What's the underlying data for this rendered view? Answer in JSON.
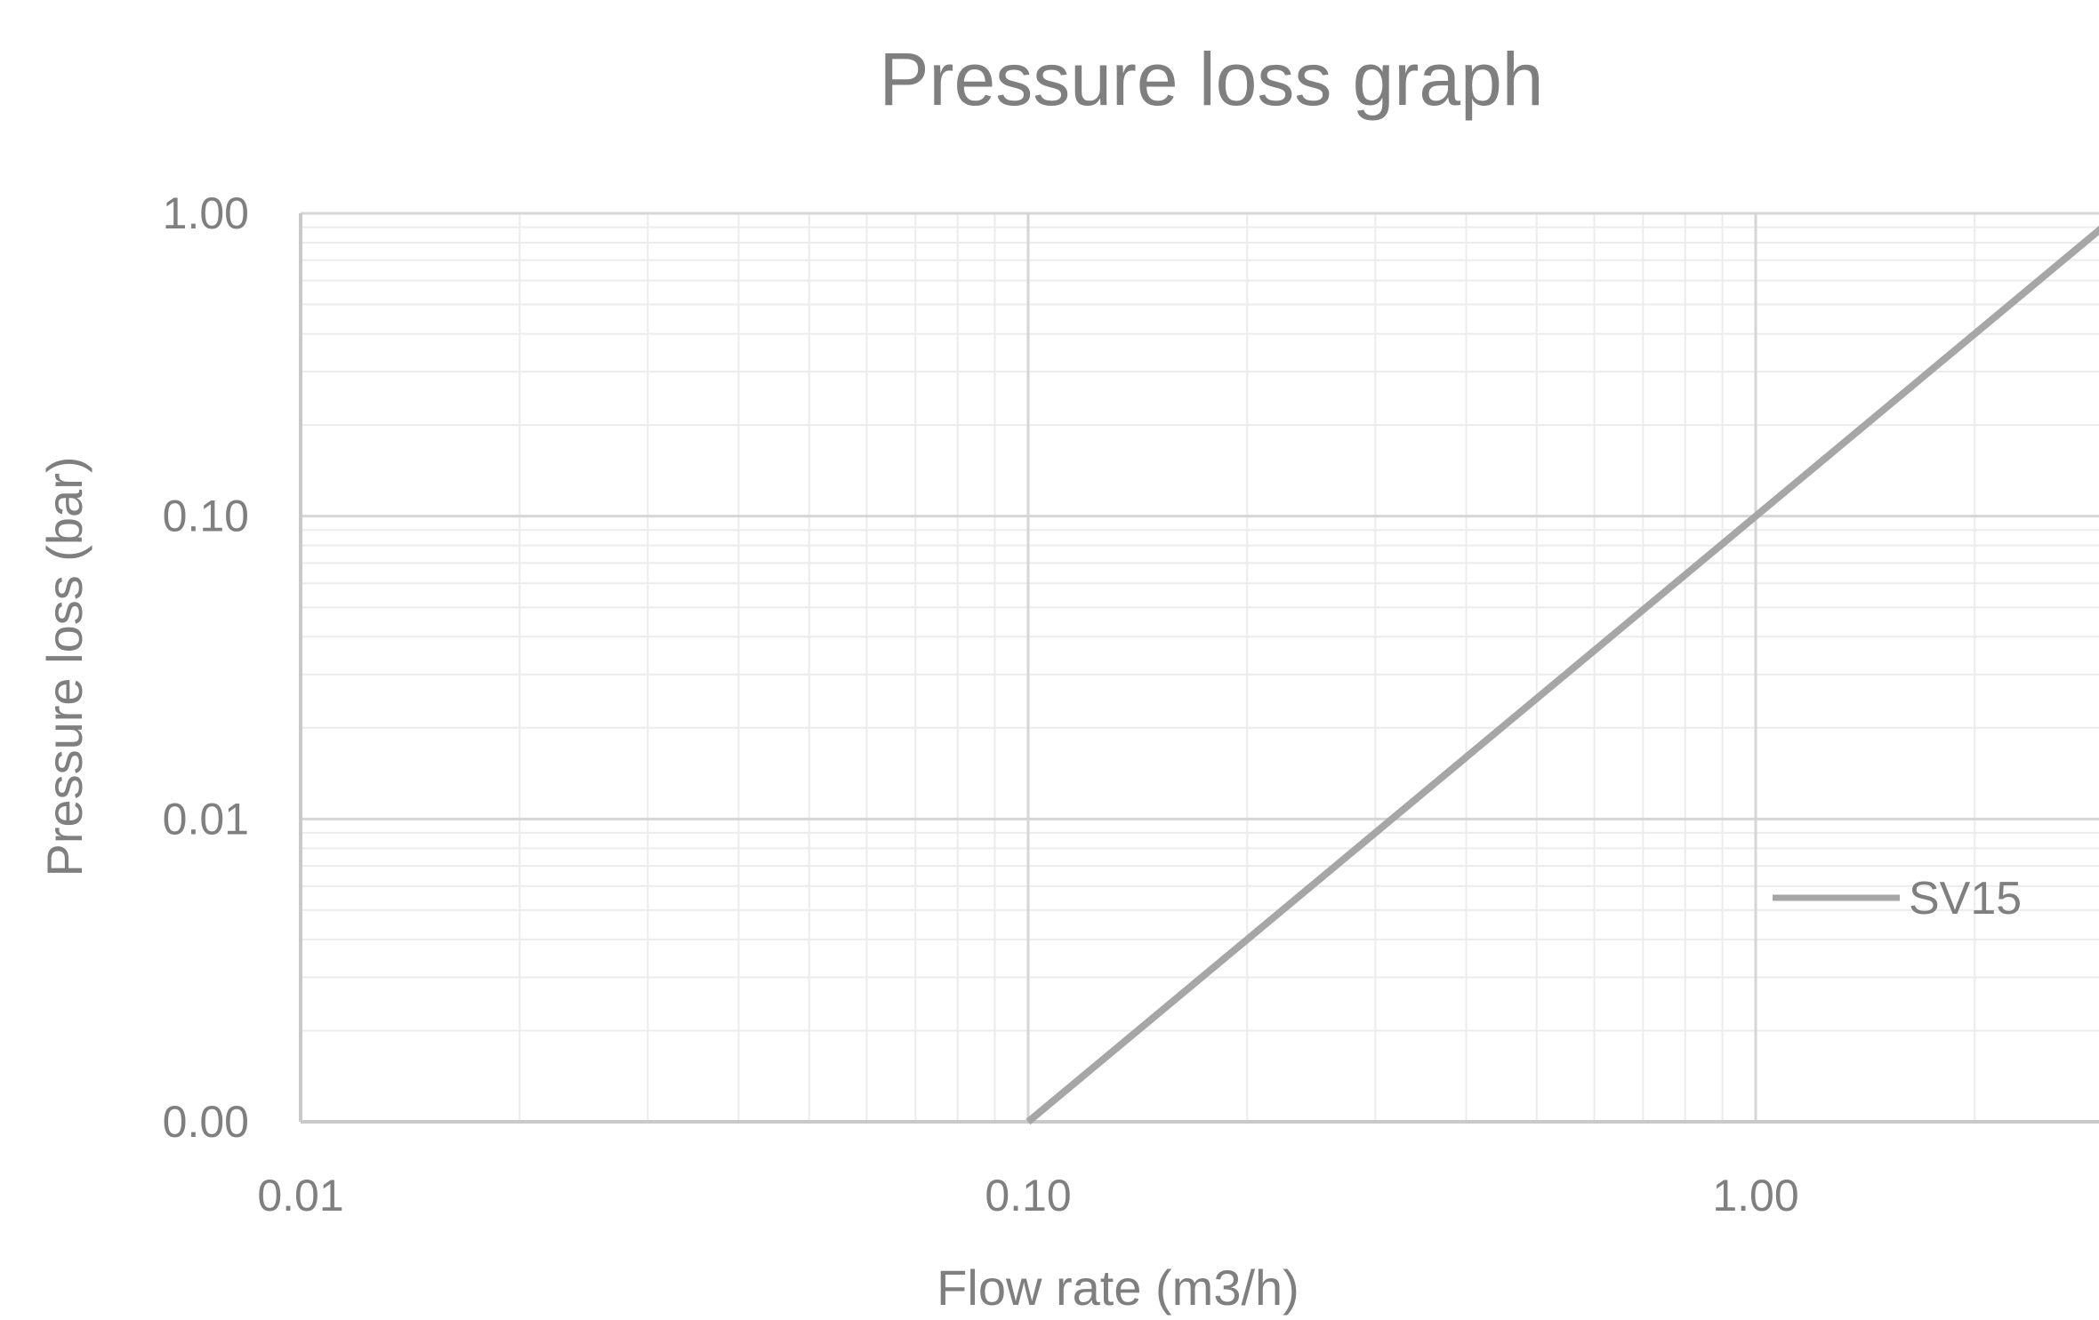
{
  "chart_data": {
    "type": "line",
    "title": "Pressure loss graph",
    "xlabel": "Flow rate (m3/h)",
    "ylabel": "Pressure loss (bar)",
    "x_scale": "log",
    "y_scale": "log",
    "xlim": [
      0.01,
      10
    ],
    "ylim": [
      0.001,
      1
    ],
    "x_ticks": [
      0.01,
      0.1,
      1
    ],
    "x_tick_labels": [
      "0.01",
      "0.10",
      "1.00"
    ],
    "y_ticks": [
      0.001,
      0.01,
      0.1,
      1
    ],
    "y_tick_labels": [
      "0.00",
      "0.01",
      "0.10",
      "1.00"
    ],
    "grid": true,
    "legend_position": "right",
    "series": [
      {
        "name": "SV15",
        "color": "#a6a6a6",
        "x": [
          0.1,
          1,
          3.0
        ],
        "y": [
          0.001,
          0.1,
          0.9
        ]
      }
    ]
  }
}
